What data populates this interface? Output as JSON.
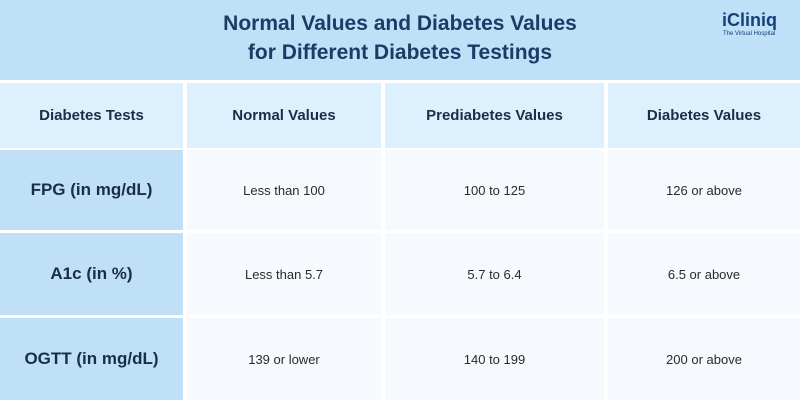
{
  "title": {
    "line1": "Normal Values and Diabetes Values",
    "line2": "for Different Diabetes Testings"
  },
  "logo": {
    "name": "iCliniq",
    "tagline": "The Virtual Hospital"
  },
  "colors": {
    "header_bg": "#bfe0f7",
    "title_text": "#1d3b66",
    "column_header_bg": "#ddf0fd",
    "row_label_bg": "#bfe0f7",
    "value_bg": "#f6f9fd",
    "brand": "#17407a"
  },
  "table": {
    "headers": [
      "Diabetes Tests",
      "Normal Values",
      "Prediabetes Values",
      "Diabetes Values"
    ],
    "rows": [
      {
        "test": "FPG (in mg/dL)",
        "normal": "Less than 100",
        "prediabetes": "100 to 125",
        "diabetes": "126 or above"
      },
      {
        "test": "A1c (in %)",
        "normal": "Less than 5.7",
        "prediabetes": "5.7 to 6.4",
        "diabetes": "6.5 or above"
      },
      {
        "test": "OGTT (in mg/dL)",
        "normal": "139 or lower",
        "prediabetes": "140 to 199",
        "diabetes": "200 or above"
      }
    ]
  }
}
